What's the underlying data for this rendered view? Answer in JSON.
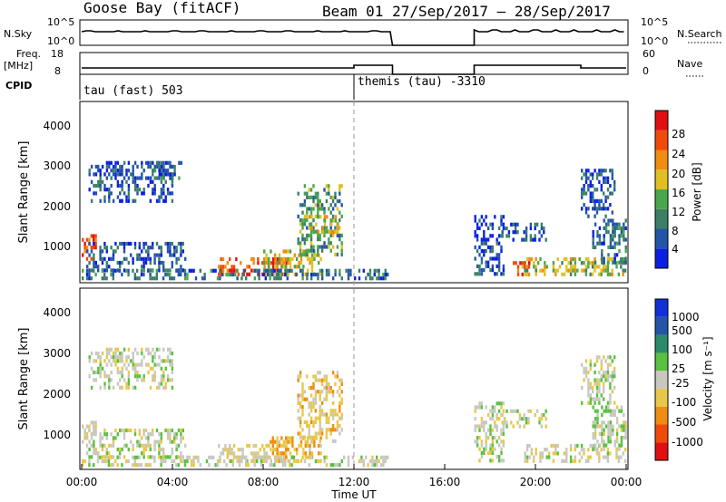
{
  "header": {
    "station": "Goose Bay (fitACF)",
    "beam_date": "Beam 01  27/Sep/2017 – 28/Sep/2017"
  },
  "top_panels": {
    "nsky_label": "N.Sky",
    "nsky_ticks": [
      "10^5",
      "10^0"
    ],
    "nsearch_label": "N.Search",
    "nsearch_ticks": [
      "10^5",
      "10^0"
    ],
    "freq_label": "Freq.",
    "freq_unit": "[MHz]",
    "freq_ticks": [
      "18",
      "8"
    ],
    "nave_label": "Nave",
    "nave_ticks": [
      "60",
      "0"
    ],
    "cpid_label": "CPID",
    "cpid_segments": [
      "tau (fast) 503",
      "themis (tau) -3310"
    ]
  },
  "x_axis": {
    "label": "Time UT",
    "ticks": [
      "00:00",
      "04:00",
      "08:00",
      "12:00",
      "16:00",
      "20:00",
      "00:00"
    ]
  },
  "power_panel": {
    "ylabel": "Slant Range [km]",
    "yticks": [
      "1000",
      "2000",
      "3000",
      "4000"
    ],
    "colorbar_label": "Power [dB]",
    "colorbar_ticks": [
      "4",
      "8",
      "12",
      "16",
      "20",
      "24",
      "28"
    ]
  },
  "velocity_panel": {
    "ylabel": "Slant Range [km]",
    "yticks": [
      "1000",
      "2000",
      "3000",
      "4000"
    ],
    "colorbar_label": "Velocity [m s⁻¹]",
    "colorbar_ticks": [
      "-1000",
      "-500",
      "-100",
      "-25",
      "25",
      "100",
      "500",
      "1000"
    ]
  },
  "colors": {
    "power_scale": [
      "#0b1fe0",
      "#2454a8",
      "#3a7f66",
      "#4aa64a",
      "#e0c020",
      "#f08c10",
      "#f04a0a",
      "#e01010"
    ],
    "velocity_scale": [
      "#e01010",
      "#f04a0a",
      "#f08c10",
      "#e8c84a",
      "#c8c8c0",
      "#5ac040",
      "#2a8a6a",
      "#2454a8",
      "#1030d8"
    ]
  },
  "chart_data": [
    {
      "type": "heatmap",
      "title": "Power",
      "xlabel": "Time UT",
      "ylabel": "Slant Range [km]",
      "xlim": [
        0,
        24
      ],
      "ylim": [
        180,
        4700
      ],
      "colorbar": {
        "label": "Power [dB]",
        "range": [
          0,
          32
        ]
      },
      "gap_hours": [
        13.7,
        17.3
      ],
      "regions": [
        {
          "t0": 0.0,
          "t1": 0.6,
          "r0": 700,
          "r1": 1300,
          "v": 26
        },
        {
          "t0": 0.2,
          "t1": 4.6,
          "r0": 400,
          "r1": 1100,
          "v": 6
        },
        {
          "t0": 0.3,
          "t1": 4.0,
          "r0": 2200,
          "r1": 3200,
          "v": 6
        },
        {
          "t0": 3.0,
          "t1": 4.4,
          "r0": 2800,
          "r1": 3200,
          "v": 8
        },
        {
          "t0": 6.0,
          "t1": 9.0,
          "r0": 250,
          "r1": 700,
          "v": 26
        },
        {
          "t0": 8.0,
          "t1": 10.5,
          "r0": 300,
          "r1": 900,
          "v": 18
        },
        {
          "t0": 9.5,
          "t1": 11.5,
          "r0": 800,
          "r1": 2600,
          "v": 12
        },
        {
          "t0": 10.0,
          "t1": 11.3,
          "r0": 1400,
          "r1": 1800,
          "v": 18
        },
        {
          "t0": 0.0,
          "t1": 13.5,
          "r0": 200,
          "r1": 400,
          "v": 8
        },
        {
          "t0": 17.3,
          "t1": 18.6,
          "r0": 300,
          "r1": 1800,
          "v": 5
        },
        {
          "t0": 18.5,
          "t1": 20.5,
          "r0": 1200,
          "r1": 1600,
          "v": 6
        },
        {
          "t0": 19.5,
          "t1": 24.0,
          "r0": 250,
          "r1": 700,
          "v": 16
        },
        {
          "t0": 19.0,
          "t1": 19.8,
          "r0": 300,
          "r1": 600,
          "v": 24
        },
        {
          "t0": 22.5,
          "t1": 24.0,
          "r0": 600,
          "r1": 1700,
          "v": 8
        },
        {
          "t0": 22.0,
          "t1": 23.5,
          "r0": 1800,
          "r1": 3000,
          "v": 6
        }
      ]
    },
    {
      "type": "heatmap",
      "title": "Velocity",
      "xlabel": "Time UT",
      "ylabel": "Slant Range [km]",
      "xlim": [
        0,
        24
      ],
      "ylim": [
        180,
        4700
      ],
      "colorbar": {
        "label": "Velocity [m s⁻¹]",
        "range": [
          -1000,
          1000
        ]
      },
      "gap_hours": [
        13.7,
        17.3
      ],
      "regions": [
        {
          "t0": 0.0,
          "t1": 0.6,
          "r0": 700,
          "r1": 1300,
          "v": -60
        },
        {
          "t0": 0.2,
          "t1": 4.6,
          "r0": 400,
          "r1": 1100,
          "v": 0
        },
        {
          "t0": 0.3,
          "t1": 4.0,
          "r0": 2200,
          "r1": 3200,
          "v": 0
        },
        {
          "t0": 6.0,
          "t1": 9.0,
          "r0": 250,
          "r1": 700,
          "v": -80
        },
        {
          "t0": 8.0,
          "t1": 10.5,
          "r0": 300,
          "r1": 900,
          "v": -300
        },
        {
          "t0": 9.5,
          "t1": 11.5,
          "r0": 800,
          "r1": 2600,
          "v": -200
        },
        {
          "t0": 0.0,
          "t1": 13.5,
          "r0": 200,
          "r1": 400,
          "v": -40
        },
        {
          "t0": 17.3,
          "t1": 18.6,
          "r0": 300,
          "r1": 1800,
          "v": 0
        },
        {
          "t0": 18.5,
          "t1": 20.5,
          "r0": 1200,
          "r1": 1600,
          "v": 0
        },
        {
          "t0": 19.5,
          "t1": 24.0,
          "r0": 250,
          "r1": 700,
          "v": -60
        },
        {
          "t0": 22.5,
          "t1": 24.0,
          "r0": 600,
          "r1": 1700,
          "v": 60
        },
        {
          "t0": 22.0,
          "t1": 23.5,
          "r0": 1800,
          "r1": 3000,
          "v": 0
        }
      ]
    }
  ]
}
